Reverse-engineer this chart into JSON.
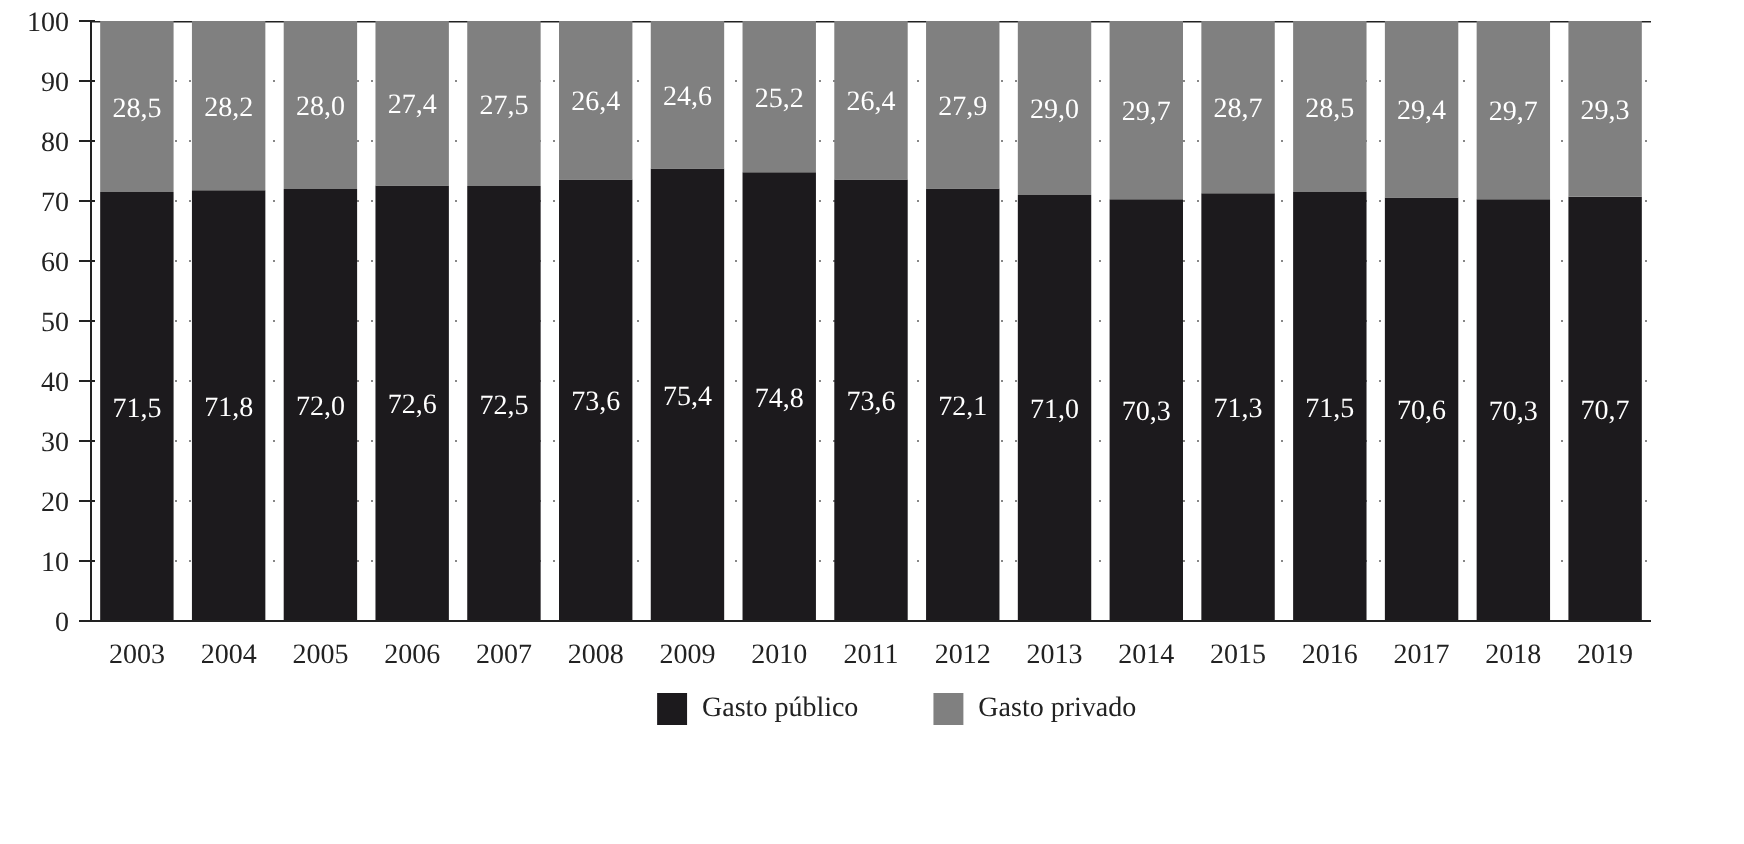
{
  "chart_data": {
    "type": "bar",
    "stacked": true,
    "categories": [
      "2003",
      "2004",
      "2005",
      "2006",
      "2007",
      "2008",
      "2009",
      "2010",
      "2011",
      "2012",
      "2013",
      "2014",
      "2015",
      "2016",
      "2017",
      "2018",
      "2019"
    ],
    "series": [
      {
        "name": "Gasto público",
        "color": "#1c1a1d",
        "values": [
          71.5,
          71.8,
          72.0,
          72.6,
          72.5,
          73.6,
          75.4,
          74.8,
          73.6,
          72.1,
          71.0,
          70.3,
          71.3,
          71.5,
          70.6,
          70.3,
          70.7
        ],
        "value_labels": [
          "71,5",
          "71,8",
          "72,0",
          "72,6",
          "72,5",
          "73,6",
          "75,4",
          "74,8",
          "73,6",
          "72,1",
          "71,0",
          "70,3",
          "71,3",
          "71,5",
          "70,6",
          "70,3",
          "70,7"
        ]
      },
      {
        "name": "Gasto privado",
        "color": "#808080",
        "values": [
          28.5,
          28.2,
          28.0,
          27.4,
          27.5,
          26.4,
          24.6,
          25.2,
          26.4,
          27.9,
          29.0,
          29.7,
          28.7,
          28.5,
          29.4,
          29.7,
          29.3
        ],
        "value_labels": [
          "28,5",
          "28,2",
          "28,0",
          "27,4",
          "27,5",
          "26,4",
          "24,6",
          "25,2",
          "26,4",
          "27,9",
          "29,0",
          "29,7",
          "28,7",
          "28,5",
          "29,4",
          "29,7",
          "29,3"
        ]
      }
    ],
    "ylim": [
      0,
      100
    ],
    "yticks": [
      0,
      10,
      20,
      30,
      40,
      50,
      60,
      70,
      80,
      90,
      100
    ],
    "grid": "y",
    "legend": "bottom"
  }
}
